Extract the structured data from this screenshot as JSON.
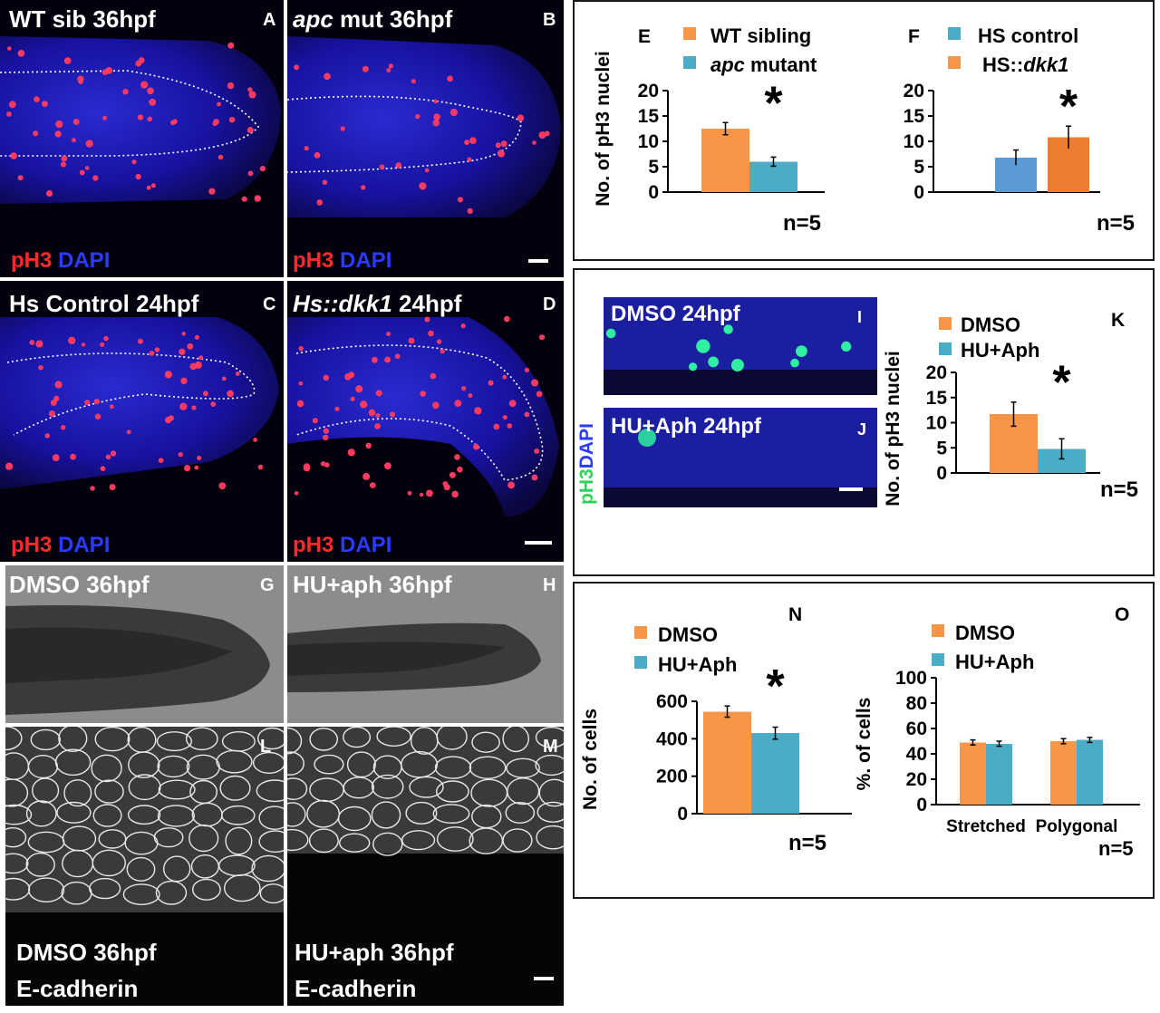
{
  "panels": {
    "A": {
      "letter": "A",
      "title": "WT sib 36hpf",
      "stain1": "pH3",
      "stain2": "DAPI"
    },
    "B": {
      "letter": "B",
      "title_italic": "apc",
      "title_rest": " mut 36hpf",
      "stain1": "pH3",
      "stain2": "DAPI"
    },
    "C": {
      "letter": "C",
      "title": "Hs Control 24hpf",
      "stain1": "pH3",
      "stain2": "DAPI"
    },
    "D": {
      "letter": "D",
      "title_italic": "Hs::dkk1",
      "title_rest": " 24hpf",
      "stain1": "pH3",
      "stain2": "DAPI"
    },
    "G": {
      "letter": "G",
      "title": "DMSO 36hpf"
    },
    "H": {
      "letter": "H",
      "title": "HU+aph 36hpf"
    },
    "I": {
      "letter": "I",
      "title": "DMSO 24hpf"
    },
    "J": {
      "letter": "J",
      "title": "HU+Aph 24hpf"
    },
    "IJ_side": {
      "stain1": "pH3",
      "stain2": "DAPI"
    },
    "L": {
      "letter": "L",
      "line1": "DMSO 36hpf",
      "line2": "E-cadherin"
    },
    "M": {
      "letter": "M",
      "line1": "HU+aph 36hpf",
      "line2": "E-cadherin"
    }
  },
  "chart_data": [
    {
      "id": "E",
      "type": "bar",
      "panel_letter": "E",
      "ylabel": "No. of pH3 nuclei",
      "ylim": [
        0,
        20
      ],
      "yticks": [
        0,
        5,
        10,
        15,
        20
      ],
      "series": [
        {
          "name": "WT sibling",
          "value": 12.5,
          "error": 1.2,
          "color": "#f79646"
        },
        {
          "name_italic": "apc",
          "name_rest": " mutant",
          "value": 6.0,
          "error": 0.9,
          "color": "#4bacc6"
        }
      ],
      "significance": "*",
      "n_label": "n=5"
    },
    {
      "id": "F",
      "type": "bar",
      "panel_letter": "F",
      "ylim": [
        0,
        20
      ],
      "yticks": [
        0,
        5,
        10,
        15,
        20
      ],
      "series": [
        {
          "name": "HS control",
          "value": 6.8,
          "error": 1.5,
          "color": "#5b9bd5"
        },
        {
          "name_prefix": "HS::",
          "name_italic": "dkk1",
          "value": 10.8,
          "error": 2.2,
          "color": "#ed7d31"
        }
      ],
      "legend_colors": [
        "#4bacc6",
        "#f79646"
      ],
      "significance": "*",
      "n_label": "n=5"
    },
    {
      "id": "K",
      "type": "bar",
      "panel_letter": "K",
      "ylabel": "No. of pH3 nuclei",
      "ylim": [
        0,
        20
      ],
      "yticks": [
        0,
        5,
        10,
        15,
        20
      ],
      "series": [
        {
          "name": "DMSO",
          "value": 11.7,
          "error": 2.4,
          "color": "#f79646"
        },
        {
          "name": "HU+Aph",
          "value": 4.8,
          "error": 2.0,
          "color": "#4bacc6"
        }
      ],
      "significance": "*",
      "n_label": "n=5"
    },
    {
      "id": "N",
      "type": "bar",
      "panel_letter": "N",
      "ylabel": "No. of cells",
      "ylim": [
        0,
        600
      ],
      "yticks": [
        0,
        200,
        400,
        600
      ],
      "series": [
        {
          "name": "DMSO",
          "value": 545,
          "error": 30,
          "color": "#f79646"
        },
        {
          "name": "HU+Aph",
          "value": 430,
          "error": 32,
          "color": "#4bacc6"
        }
      ],
      "significance": "*",
      "n_label": "n=5"
    },
    {
      "id": "O",
      "type": "bar",
      "panel_letter": "O",
      "ylabel": "%. of cells",
      "ylim": [
        0,
        100
      ],
      "yticks": [
        0,
        20,
        40,
        60,
        80,
        100
      ],
      "categories": [
        "Stretched",
        "Polygonal"
      ],
      "series": [
        {
          "name": "DMSO",
          "values": [
            49,
            50
          ],
          "errors": [
            2,
            2
          ],
          "color": "#f79646"
        },
        {
          "name": "HU+Aph",
          "values": [
            48,
            51
          ],
          "errors": [
            2,
            2
          ],
          "color": "#4bacc6"
        }
      ],
      "n_label": "n=5"
    }
  ],
  "colors": {
    "orange": "#f79646",
    "teal": "#4bacc6",
    "fluor_blue": "#1c1ea0",
    "nuclei_red": "#ff3a60",
    "nuclei_green": "#2ff0a0"
  }
}
